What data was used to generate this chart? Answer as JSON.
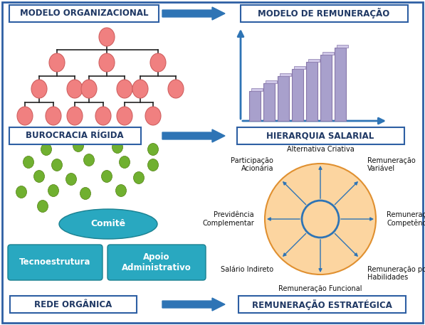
{
  "bg_color": "#ffffff",
  "border_color": "#2e5fa3",
  "title_text_color": "#1f3864",
  "arrow_color": "#2e74b5",
  "salmon_color": "#f08080",
  "salmon_edge": "#d06060",
  "green_dot_color": "#70b030",
  "green_dot_edge": "#508010",
  "teal_color": "#29a8c0",
  "teal_edge": "#1a8090",
  "orange_circle_fill": "#fcd5a0",
  "orange_circle_edge": "#e09030",
  "wheel_line_color": "#2e74b5",
  "bar_color": "#a8a0cc",
  "bar_edge": "#8878aa",
  "axes_color": "#2e74b5",
  "label_fontsize": 7.0,
  "title_fontsize": 8.0,
  "sections": {
    "top_left_title": "MODELO ORGANIZACIONAL",
    "top_right_title": "MODELO DE REMUNERAÇÃO",
    "mid_left_title": "BUROCRACIA RÍGIDA",
    "mid_right_title": "HIERARQUIA SALARIAL",
    "bot_left_title": "REDE ORGÂNICA",
    "bot_right_title": "REMUNERAÇÃO ESTRATÉGICA"
  }
}
